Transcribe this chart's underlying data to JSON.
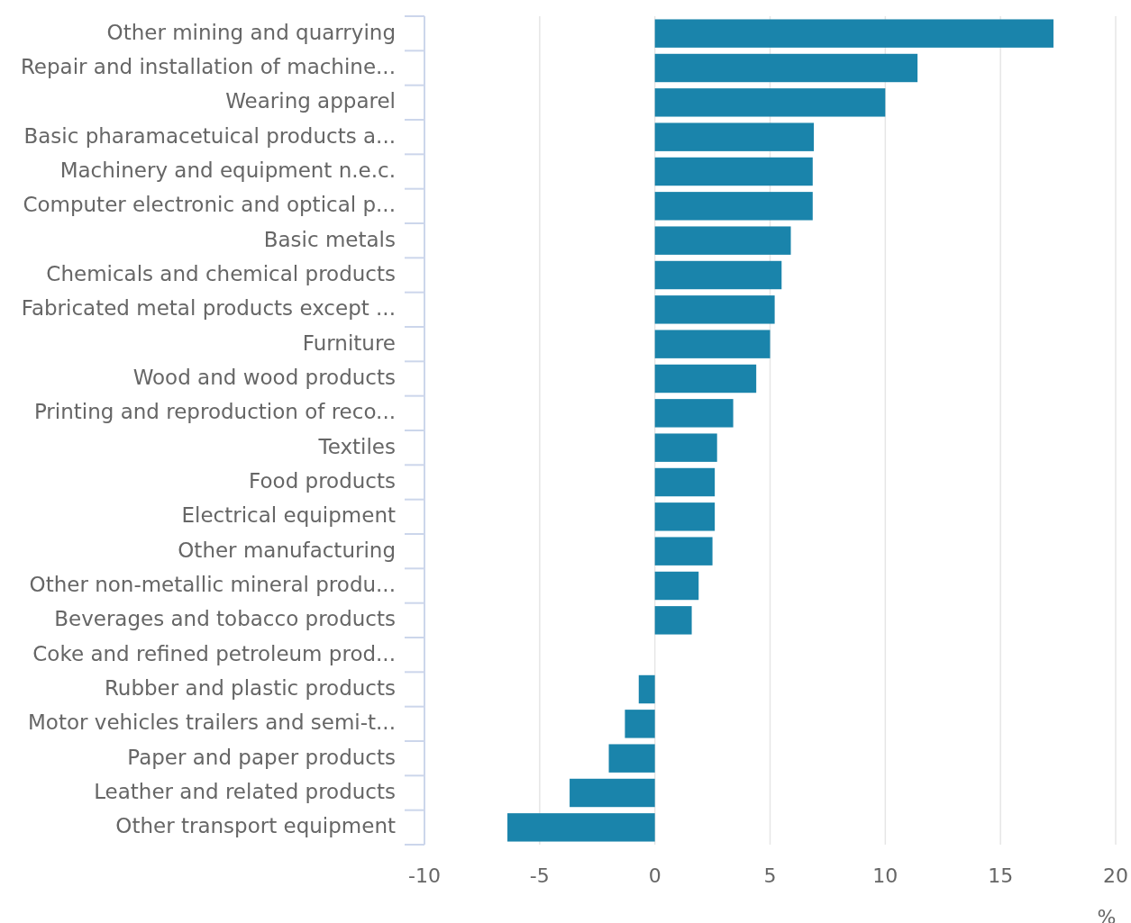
{
  "chart_data": {
    "type": "bar",
    "orientation": "horizontal",
    "xlabel": "%",
    "categories": [
      "Other mining and quarrying",
      "Repair and installation of machine...",
      "Wearing apparel",
      "Basic pharamacetuical products a...",
      "Machinery and equipment n.e.c.",
      "Computer electronic and optical p...",
      "Basic metals",
      "Chemicals and chemical products",
      "Fabricated metal products except ...",
      "Furniture",
      "Wood and wood products",
      "Printing and reproduction of reco...",
      "Textiles",
      "Food products",
      "Electrical equipment",
      "Other manufacturing",
      "Other non-metallic mineral produ...",
      "Beverages and tobacco products",
      "Coke and refined petroleum prod...",
      "Rubber and plastic products",
      "Motor vehicles trailers and semi-t...",
      "Paper and paper products",
      "Leather and related products",
      "Other transport equipment"
    ],
    "values": [
      17.3,
      11.4,
      10.0,
      6.9,
      6.85,
      6.85,
      5.9,
      5.5,
      5.2,
      5.0,
      4.4,
      3.4,
      2.7,
      2.6,
      2.6,
      2.5,
      1.9,
      1.6,
      0,
      -0.7,
      -1.3,
      -2.0,
      -3.7,
      -6.4
    ],
    "color": "#1a84ab",
    "xlim": [
      -10,
      20
    ],
    "xticks": [
      -10,
      -5,
      0,
      5,
      10,
      15,
      20
    ],
    "grid": "x"
  }
}
